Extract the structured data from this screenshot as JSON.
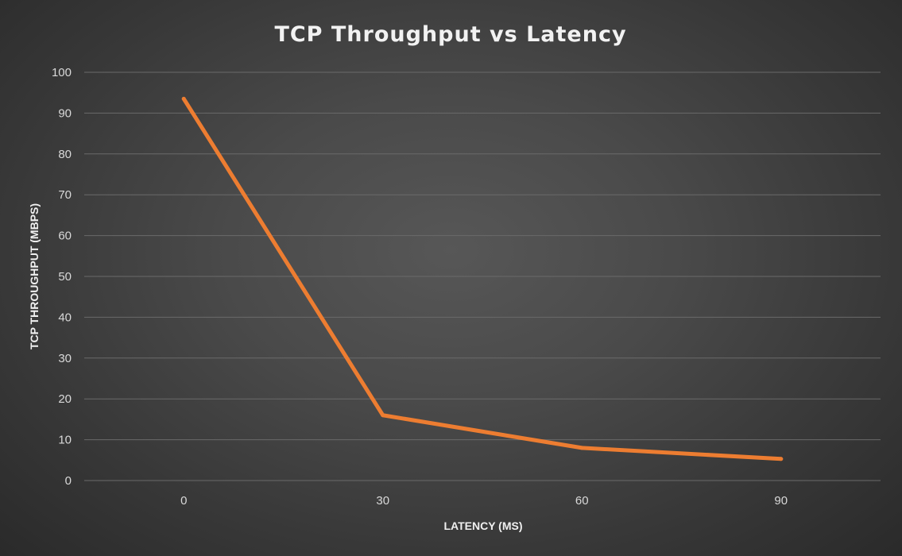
{
  "chart_data": {
    "type": "line",
    "title": "TCP Throughput vs Latency",
    "xlabel": "LATENCY (MS)",
    "ylabel": "TCP THROUGHPUT (MBPS)",
    "categories": [
      "0",
      "30",
      "60",
      "90"
    ],
    "series": [
      {
        "values": [
          93.5,
          16,
          8,
          5.3
        ],
        "color": "#ed7d31"
      }
    ],
    "ylim": [
      0,
      100
    ],
    "yticks": [
      "0",
      "10",
      "20",
      "30",
      "40",
      "50",
      "60",
      "70",
      "80",
      "90",
      "100"
    ],
    "grid": true,
    "legend": "none"
  }
}
